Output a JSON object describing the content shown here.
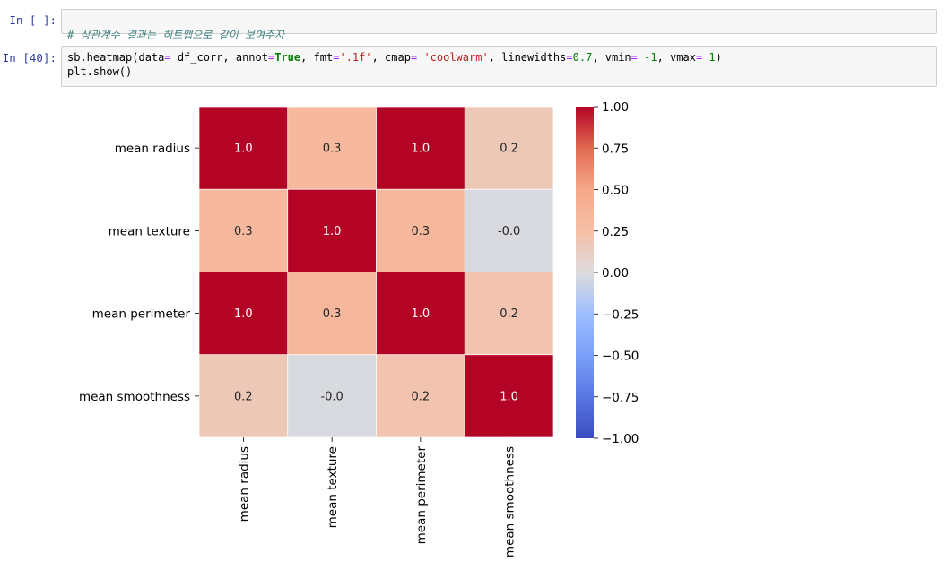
{
  "cells": [
    {
      "prompt": "In [ ]:",
      "comment": "# 상관계수 결과는 히트맵으로 같이 보여주자"
    },
    {
      "prompt": "In [40]:",
      "code": {
        "f1": "sb.heatmap(data",
        "eq1": "=",
        "f2": " df_corr, annot",
        "eq2": "=",
        "kw_true": "True",
        "f3": ", fmt",
        "eq3": "=",
        "s1": "'.1f'",
        "f4": ", cmap",
        "eq4": "=",
        "f4b": " ",
        "s2": "'coolwarm'",
        "f5": ", linewidths",
        "eq5": "=",
        "n1": "0.7",
        "f6": ", vmin",
        "eq6": "=",
        "f6b": " ",
        "n2": "-1",
        "f7": ", vmax",
        "eq7": "=",
        "f7b": " ",
        "n3": "1",
        "f8": ")",
        "line2": "plt.show()"
      }
    }
  ],
  "chart_data": {
    "type": "heatmap",
    "rows": [
      "mean radius",
      "mean texture",
      "mean perimeter",
      "mean smoothness"
    ],
    "cols": [
      "mean radius",
      "mean texture",
      "mean perimeter",
      "mean smoothness"
    ],
    "values": [
      [
        1.0,
        0.32,
        1.0,
        0.17
      ],
      [
        0.32,
        1.0,
        0.33,
        -0.02
      ],
      [
        1.0,
        0.33,
        1.0,
        0.21
      ],
      [
        0.17,
        -0.02,
        0.21,
        1.0
      ]
    ],
    "annotations": [
      [
        "1.0",
        "0.3",
        "1.0",
        "0.2"
      ],
      [
        "0.3",
        "1.0",
        "0.3",
        "-0.0"
      ],
      [
        "1.0",
        "0.3",
        "1.0",
        "0.2"
      ],
      [
        "0.2",
        "-0.0",
        "0.2",
        "1.0"
      ]
    ],
    "colormap": "coolwarm",
    "vmin": -1,
    "vmax": 1,
    "colorbar_ticks": [
      "1.00",
      "0.75",
      "0.50",
      "0.25",
      "0.00",
      "−0.25",
      "−0.50",
      "−0.75",
      "−1.00"
    ],
    "colorbar_tick_values": [
      1.0,
      0.75,
      0.5,
      0.25,
      0.0,
      -0.25,
      -0.5,
      -0.75,
      -1.0
    ]
  }
}
